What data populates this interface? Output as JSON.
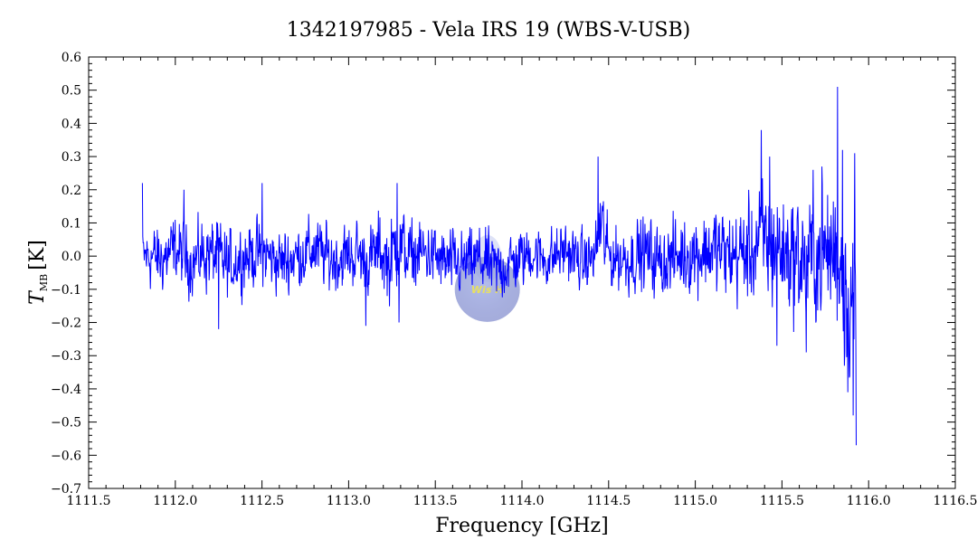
{
  "chart_data": {
    "type": "line",
    "title": "1342197985 - Vela IRS 19 (WBS-V-USB)",
    "xlabel": "Frequency [GHz]",
    "ylabel_main": "T",
    "ylabel_sub": "MB",
    "ylabel_unit": "[K]",
    "xlim": [
      1111.5,
      1116.5
    ],
    "ylim": [
      -0.7,
      0.6
    ],
    "xticks": [
      "1111.5",
      "1112.0",
      "1112.5",
      "1113.0",
      "1113.5",
      "1114.0",
      "1114.5",
      "1115.0",
      "1115.5",
      "1116.0",
      "1116.5"
    ],
    "yticks": [
      "0.6",
      "0.5",
      "0.4",
      "0.3",
      "0.2",
      "0.1",
      "0.0",
      "−0.1",
      "−0.2",
      "−0.3",
      "−0.4",
      "−0.5",
      "−0.6",
      "−0.7"
    ],
    "grid": false,
    "series": [
      {
        "color": "#0000ff",
        "x_range": [
          1111.81,
          1115.93
        ],
        "x": [
          1111.81,
          1111.85,
          1111.92,
          1112.0,
          1112.05,
          1112.1,
          1112.17,
          1112.25,
          1112.3,
          1112.4,
          1112.5,
          1112.6,
          1112.7,
          1112.8,
          1112.9,
          1113.0,
          1113.05,
          1113.1,
          1113.18,
          1113.24,
          1113.28,
          1113.3,
          1113.35,
          1113.45,
          1113.55,
          1113.65,
          1113.75,
          1113.85,
          1113.95,
          1114.05,
          1114.15,
          1114.25,
          1114.35,
          1114.42,
          1114.45,
          1114.5,
          1114.6,
          1114.7,
          1114.8,
          1114.9,
          1115.0,
          1115.1,
          1115.2,
          1115.3,
          1115.38,
          1115.42,
          1115.5,
          1115.58,
          1115.64,
          1115.7,
          1115.78,
          1115.82,
          1115.86,
          1115.9,
          1115.93
        ],
        "y_center": [
          0.0,
          0.0,
          -0.01,
          0.02,
          0.0,
          -0.02,
          0.01,
          0.0,
          -0.03,
          0.0,
          0.01,
          -0.02,
          0.0,
          0.02,
          -0.01,
          0.0,
          0.01,
          -0.02,
          0.02,
          -0.03,
          0.06,
          0.03,
          0.0,
          0.01,
          -0.02,
          -0.03,
          -0.01,
          -0.04,
          -0.02,
          0.01,
          -0.01,
          0.02,
          -0.02,
          0.0,
          0.1,
          0.0,
          -0.01,
          0.01,
          -0.02,
          0.0,
          0.01,
          0.02,
          0.0,
          0.01,
          0.05,
          0.04,
          0.02,
          0.0,
          -0.02,
          0.0,
          0.01,
          0.02,
          -0.05,
          -0.1,
          -0.15
        ],
        "y_noise": [
          0.06,
          0.08,
          0.08,
          0.08,
          0.08,
          0.08,
          0.09,
          0.09,
          0.08,
          0.08,
          0.08,
          0.08,
          0.08,
          0.08,
          0.08,
          0.08,
          0.08,
          0.08,
          0.09,
          0.1,
          0.12,
          0.1,
          0.08,
          0.08,
          0.08,
          0.08,
          0.08,
          0.08,
          0.08,
          0.07,
          0.07,
          0.07,
          0.07,
          0.07,
          0.12,
          0.08,
          0.08,
          0.09,
          0.09,
          0.09,
          0.1,
          0.11,
          0.11,
          0.12,
          0.14,
          0.16,
          0.14,
          0.15,
          0.17,
          0.15,
          0.16,
          0.2,
          0.22,
          0.24,
          0.26
        ],
        "spikes": [
          {
            "x": 1111.81,
            "y": 0.22
          },
          {
            "x": 1112.05,
            "y": 0.2
          },
          {
            "x": 1112.25,
            "y": -0.22
          },
          {
            "x": 1112.5,
            "y": 0.22
          },
          {
            "x": 1113.1,
            "y": -0.21
          },
          {
            "x": 1113.28,
            "y": 0.22
          },
          {
            "x": 1113.29,
            "y": -0.2
          },
          {
            "x": 1114.44,
            "y": 0.3
          },
          {
            "x": 1115.38,
            "y": 0.38
          },
          {
            "x": 1115.43,
            "y": 0.3
          },
          {
            "x": 1115.47,
            "y": -0.27
          },
          {
            "x": 1115.64,
            "y": -0.29
          },
          {
            "x": 1115.68,
            "y": 0.26
          },
          {
            "x": 1115.73,
            "y": 0.27
          },
          {
            "x": 1115.82,
            "y": 0.51
          },
          {
            "x": 1115.85,
            "y": 0.32
          },
          {
            "x": 1115.88,
            "y": -0.41
          },
          {
            "x": 1115.91,
            "y": -0.48
          },
          {
            "x": 1115.92,
            "y": 0.31
          },
          {
            "x": 1115.93,
            "y": -0.57
          }
        ]
      }
    ],
    "watermark": {
      "text": "Wis H",
      "x": 1113.8,
      "y": -0.1
    }
  }
}
